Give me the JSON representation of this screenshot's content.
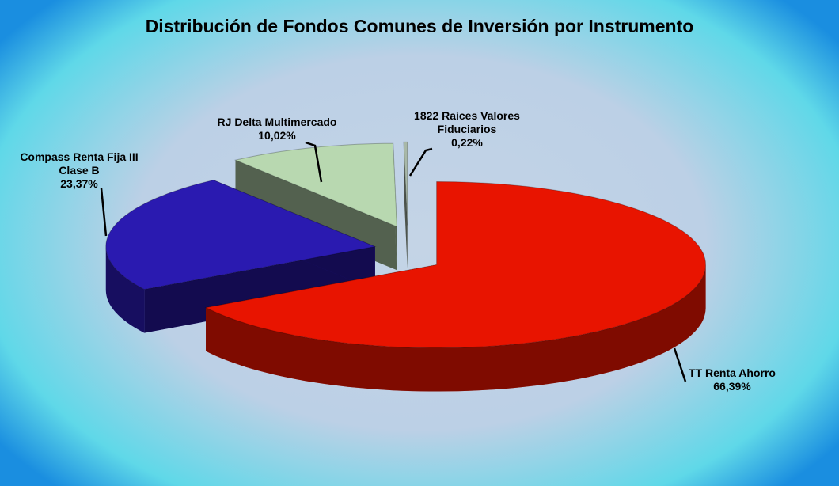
{
  "chart_data": {
    "type": "pie3d",
    "title": "Distribución de Fondos Comunes de Inversión por Instrumento",
    "categories": [
      "TT Renta Ahorro",
      "Compass Renta Fija III Clase B",
      "RJ Delta Multimercado",
      "1822 Raíces Valores Fiduciarios"
    ],
    "values": [
      66.39,
      23.37,
      10.02,
      0.22
    ],
    "value_labels": [
      "66,39%",
      "23,37%",
      "10,02%",
      "0,22%"
    ],
    "colors": [
      "#e81400",
      "#2a1ab0",
      "#b8d8b0",
      "#a8b8a8"
    ]
  }
}
